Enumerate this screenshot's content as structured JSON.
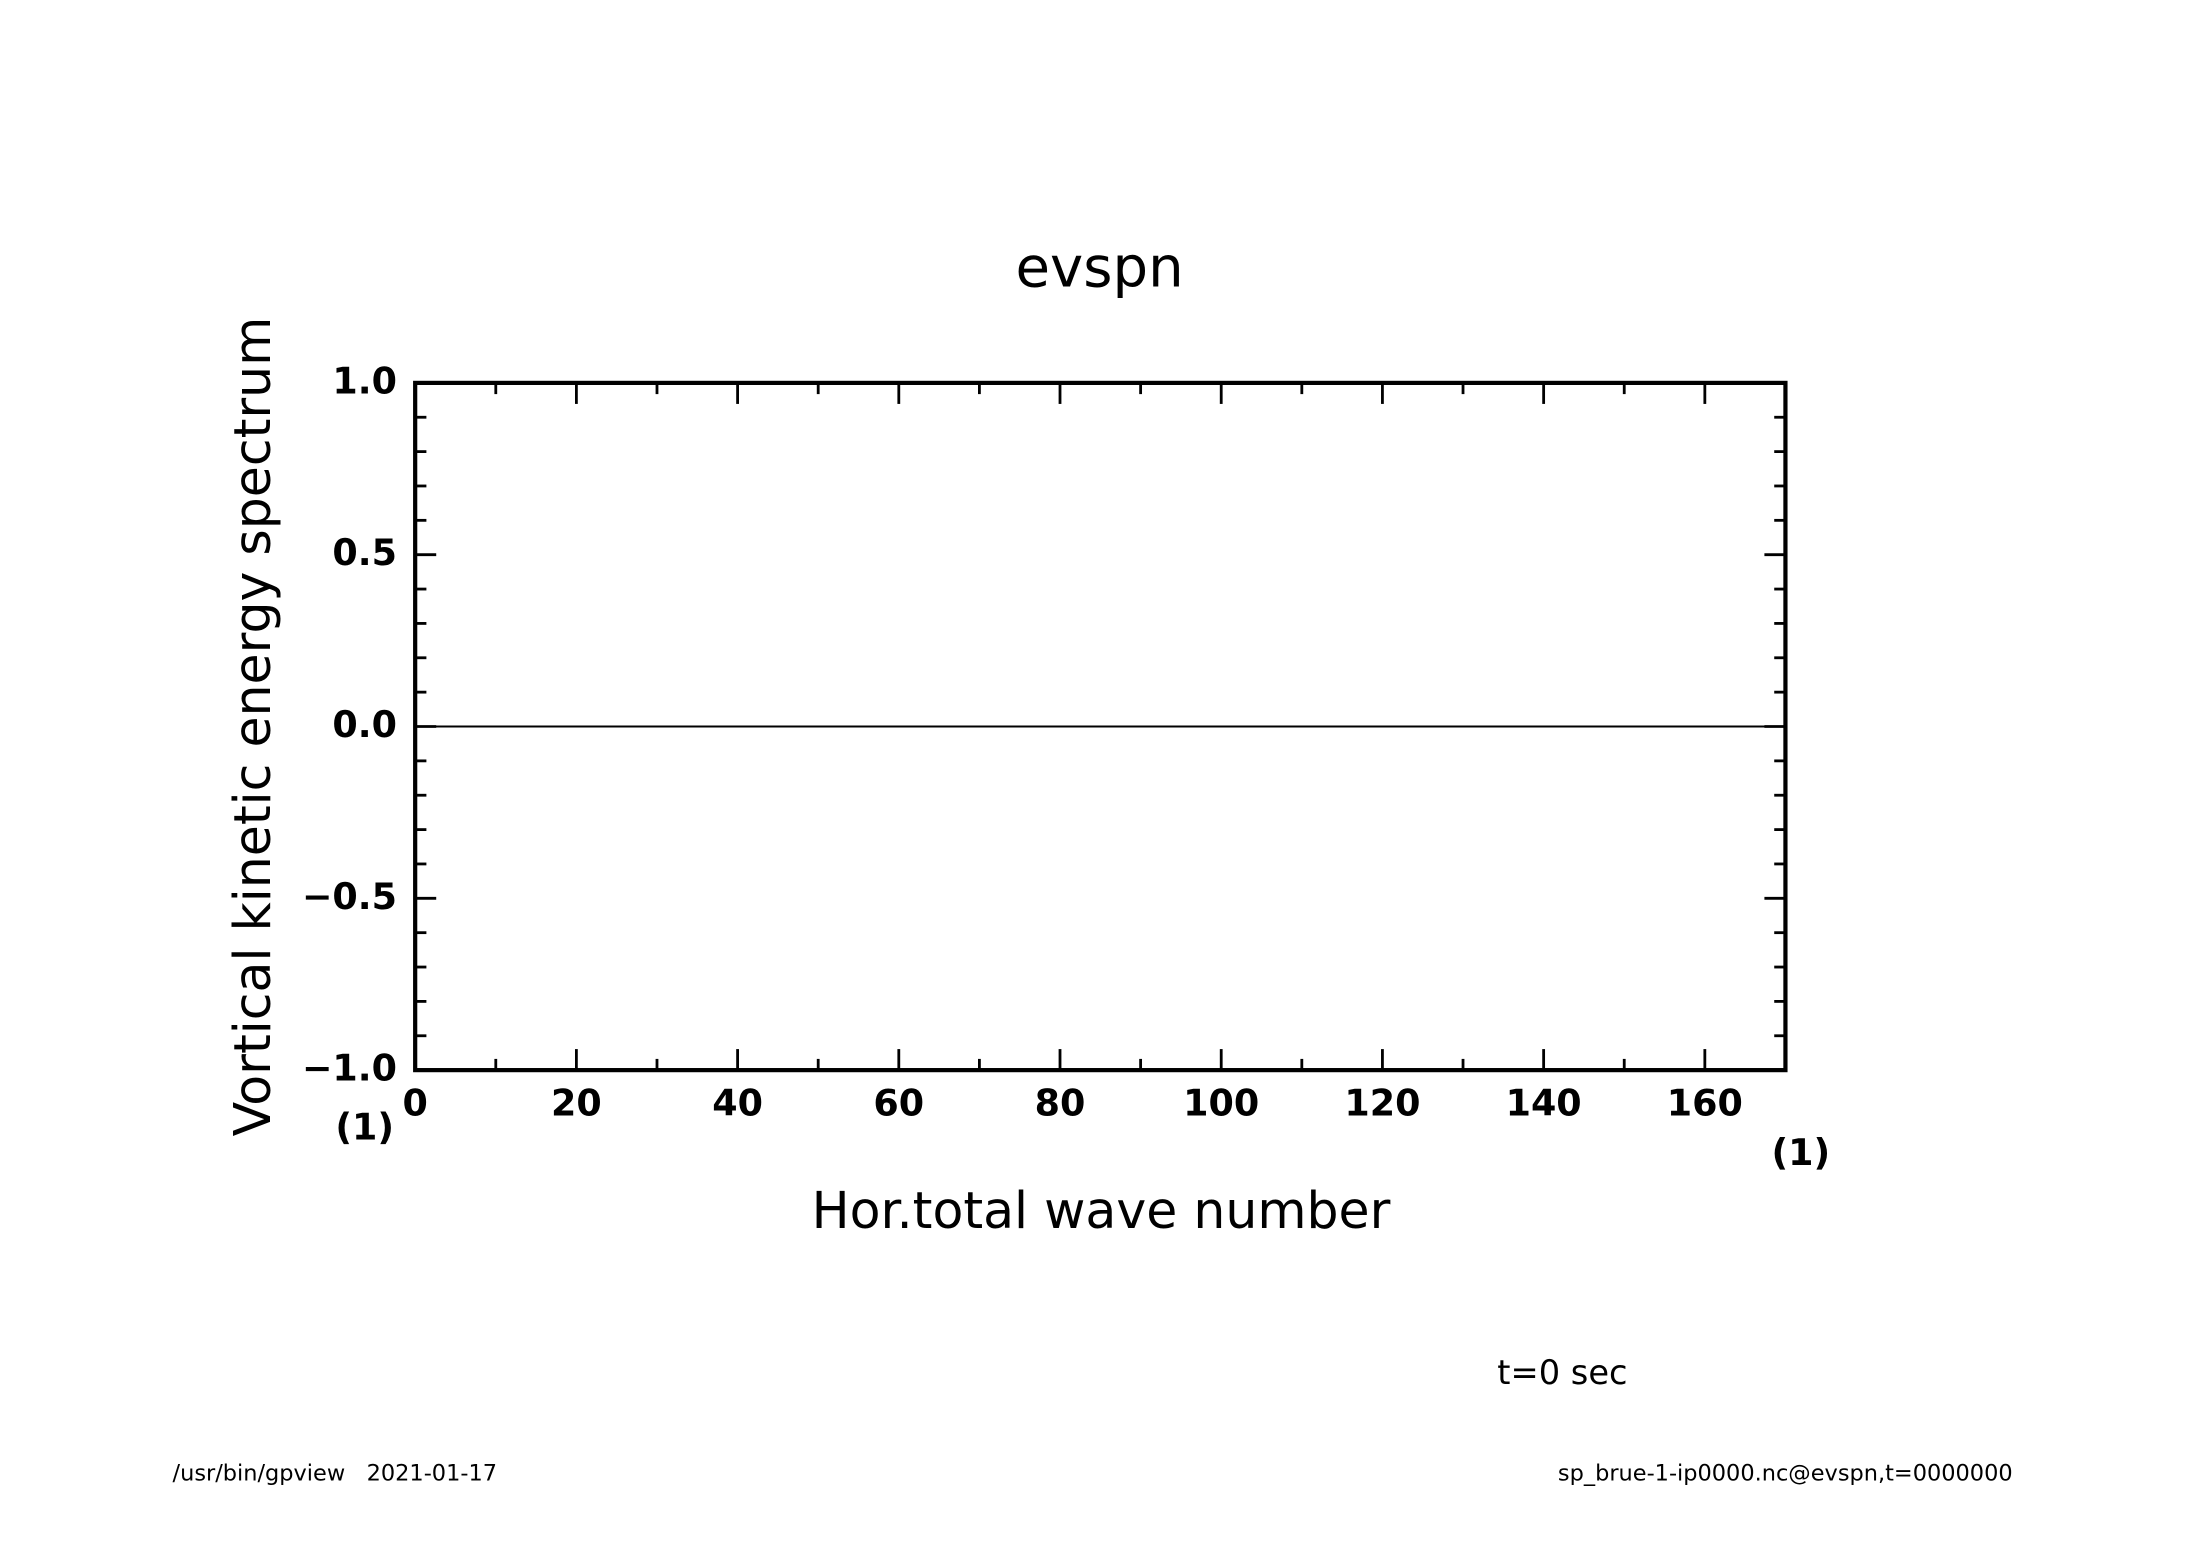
{
  "chart_data": {
    "type": "line",
    "title": "evspn",
    "x_label": "Hor.total wave number",
    "y_label": "Vortical kinetic energy spectrum",
    "x_unit": "(1)",
    "y_unit": "(1)",
    "time_note": "t=0 sec",
    "footer_left": "/usr/bin/gpview   2021-01-17",
    "footer_right": "sp_brue-1-ip0000.nc@evspn,t=0000000",
    "x": [
      0,
      170
    ],
    "series": [
      {
        "color": "#000000",
        "values": [
          0,
          0
        ]
      }
    ],
    "xlim": [
      0,
      170
    ],
    "ylim": [
      -1,
      1
    ],
    "xticks": [
      0,
      20,
      40,
      60,
      80,
      100,
      120,
      140,
      160
    ],
    "xminorticks": [
      10,
      30,
      50,
      70,
      90,
      110,
      130,
      150,
      170
    ],
    "yticks": [
      {
        "value": -1,
        "label": "−1.0"
      },
      {
        "value": -0.5,
        "label": "−0.5"
      },
      {
        "value": 0,
        "label": "0.0"
      },
      0.5,
      {
        "value": 1,
        "label": "1.0"
      }
    ],
    "yminorticks": [
      -0.9,
      -0.8,
      -0.7,
      -0.6,
      -0.4,
      -0.3,
      -0.2,
      -0.1,
      0.1,
      0.2,
      0.3,
      0.4,
      0.6,
      0.7,
      0.8,
      0.9
    ]
  }
}
